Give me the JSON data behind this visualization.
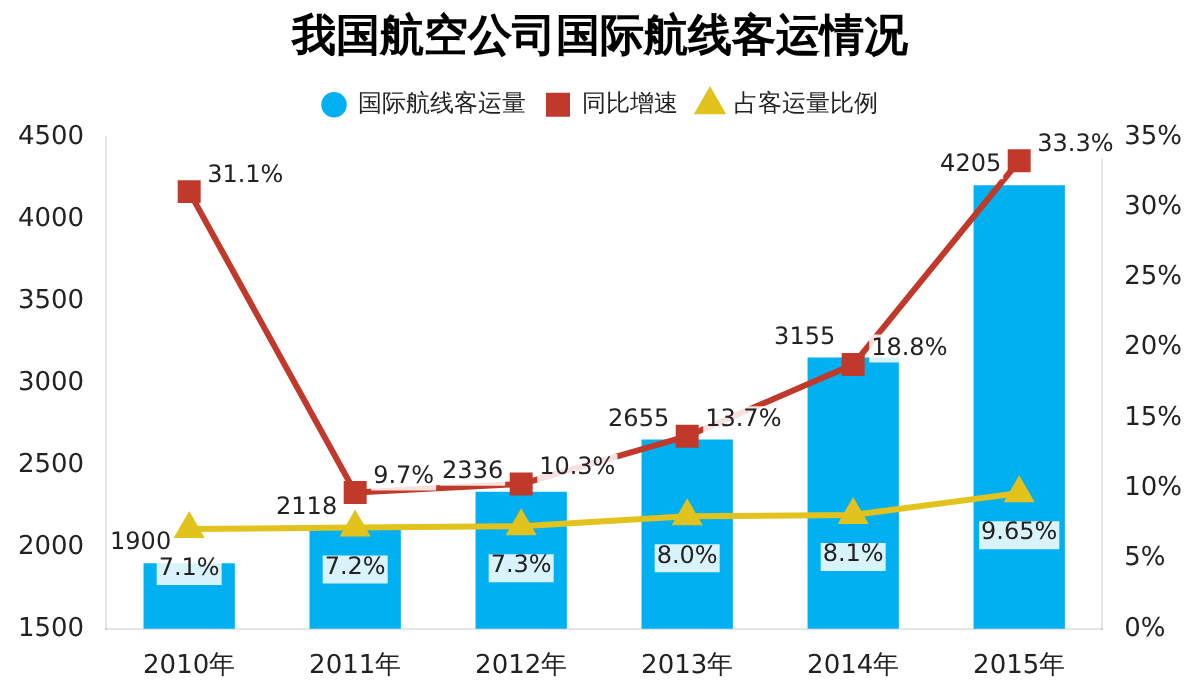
{
  "chart_data": {
    "type": "bar",
    "title": "我国航空公司国际航线客运情况",
    "categories": [
      "2010年",
      "2011年",
      "2012年",
      "2013年",
      "2014年",
      "2015年"
    ],
    "series": [
      {
        "name": "国际航线客运量",
        "color": "#00b0f0",
        "values": [
          1900,
          2118,
          2336,
          2655,
          3155,
          4205
        ],
        "value_labels": [
          "1900",
          "2118",
          "2336",
          "2655",
          "3155",
          "4205"
        ]
      },
      {
        "name": "同比增速",
        "type": "line",
        "axis": "y2",
        "marker": "square",
        "color": "#c0392b",
        "values": [
          31.1,
          9.7,
          10.3,
          13.7,
          18.8,
          33.3
        ],
        "value_labels": [
          "31.1%",
          "9.7%",
          "10.3%",
          "13.7%",
          "18.8%",
          "33.3%"
        ]
      },
      {
        "name": "占客运量比例",
        "type": "line",
        "axis": "y2",
        "marker": "triangle",
        "color": "#e2c21c",
        "values": [
          7.1,
          7.2,
          7.3,
          8.0,
          8.1,
          9.65
        ],
        "value_labels": [
          "7.1%",
          "7.2%",
          "7.3%",
          "8.0%",
          "8.1%",
          "9.65%"
        ]
      }
    ],
    "ylim": [
      1500,
      4500
    ],
    "yticks": [
      1500,
      2000,
      2500,
      3000,
      3500,
      4000,
      4500
    ],
    "y2lim": [
      0,
      35
    ],
    "y2ticks": [
      {
        "value": 0,
        "label": "0%"
      },
      {
        "value": 5,
        "label": "5%"
      },
      {
        "value": 10,
        "label": "10%"
      },
      {
        "value": 15,
        "label": "15%"
      },
      {
        "value": 20,
        "label": "20%"
      },
      {
        "value": 25,
        "label": "25%"
      },
      {
        "value": 30,
        "label": "30%"
      },
      {
        "value": 35,
        "label": "35%"
      }
    ],
    "grid": false,
    "legend": "top"
  }
}
